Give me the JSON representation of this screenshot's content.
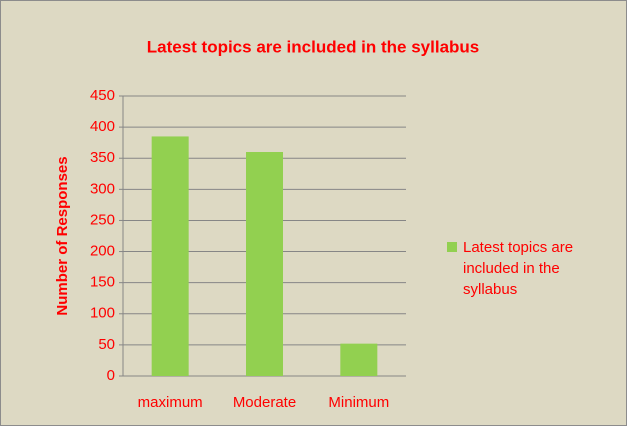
{
  "chart_data": {
    "type": "bar",
    "title": "Latest topics are included in the syllabus",
    "y_label": "Number of Responses",
    "categories": [
      "maximum",
      "Moderate",
      "Minimum"
    ],
    "series": [
      {
        "name": "Latest topics are included in the syllabus",
        "color": "#92d050",
        "values": [
          385,
          360,
          52
        ]
      }
    ],
    "ylim": [
      0,
      450
    ],
    "yticks": [
      0,
      50,
      100,
      150,
      200,
      250,
      300,
      350,
      400,
      450
    ],
    "grid": true,
    "legend": "right"
  }
}
